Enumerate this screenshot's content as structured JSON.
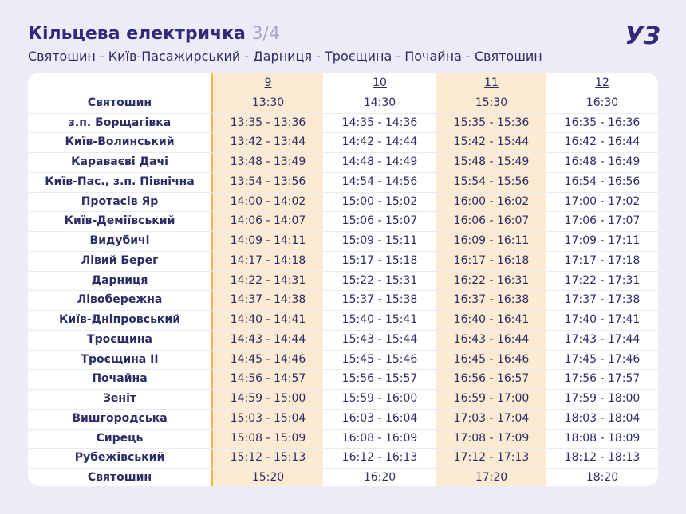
{
  "header": {
    "title": "Кільцева електричка",
    "page": "3/4",
    "route": "Святошин - Київ-Пасажирський - Дарниця - Троєщина - Почайна - Святошин",
    "logo": "УЗ"
  },
  "table": {
    "columns": [
      "9",
      "10",
      "11",
      "12"
    ],
    "rows": [
      [
        "Святошин",
        "13:30",
        "14:30",
        "15:30",
        "16:30"
      ],
      [
        "з.п. Борщагівка",
        "13:35 - 13:36",
        "14:35 - 14:36",
        "15:35 - 15:36",
        "16:35 - 16:36"
      ],
      [
        "Київ-Волинський",
        "13:42 - 13:44",
        "14:42 - 14:44",
        "15:42 - 15:44",
        "16:42 - 16:44"
      ],
      [
        "Караваєві Дачі",
        "13:48 - 13:49",
        "14:48 - 14:49",
        "15:48 - 15:49",
        "16:48 - 16:49"
      ],
      [
        "Київ-Пас., з.п. Північна",
        "13:54 - 13:56",
        "14:54 - 14:56",
        "15:54 - 15:56",
        "16:54 - 16:56"
      ],
      [
        "Протасів Яр",
        "14:00 - 14:02",
        "15:00 - 15:02",
        "16:00 - 16:02",
        "17:00 - 17:02"
      ],
      [
        "Київ-Деміївський",
        "14:06 - 14:07",
        "15:06 - 15:07",
        "16:06 - 16:07",
        "17:06 - 17:07"
      ],
      [
        "Видубичі",
        "14:09 - 14:11",
        "15:09 - 15:11",
        "16:09 - 16:11",
        "17:09 - 17:11"
      ],
      [
        "Лівий Берег",
        "14:17 - 14:18",
        "15:17 - 15:18",
        "16:17 - 16:18",
        "17:17 - 17:18"
      ],
      [
        "Дарниця",
        "14:22 - 14:31",
        "15:22 - 15:31",
        "16:22 - 16:31",
        "17:22 - 17:31"
      ],
      [
        "Лівобережна",
        "14:37 - 14:38",
        "15:37 - 15:38",
        "16:37 - 16:38",
        "17:37 - 17:38"
      ],
      [
        "Київ-Дніпровський",
        "14:40 - 14:41",
        "15:40 - 15:41",
        "16:40 - 16:41",
        "17:40 - 17:41"
      ],
      [
        "Троєщина",
        "14:43 - 14:44",
        "15:43 - 15:44",
        "16:43 - 16:44",
        "17:43 - 17:44"
      ],
      [
        "Троєщина II",
        "14:45 - 14:46",
        "15:45 - 15:46",
        "16:45 - 16:46",
        "17:45 - 17:46"
      ],
      [
        "Почайна",
        "14:56 - 14:57",
        "15:56 - 15:57",
        "16:56 - 16:57",
        "17:56 - 17:57"
      ],
      [
        "Зеніт",
        "14:59 - 15:00",
        "15:59 - 16:00",
        "16:59 - 17:00",
        "17:59 - 18:00"
      ],
      [
        "Вишгородська",
        "15:03 - 15:04",
        "16:03 - 16:04",
        "17:03 - 17:04",
        "18:03 - 18:04"
      ],
      [
        "Сирець",
        "15:08 - 15:09",
        "16:08 - 16:09",
        "17:08 - 17:09",
        "18:08 - 18:09"
      ],
      [
        "Рубежівський",
        "15:12 - 15:13",
        "16:12 - 16:13",
        "17:12 - 17:13",
        "18:12 - 18:13"
      ],
      [
        "Святошин",
        "15:20",
        "16:20",
        "17:20",
        "18:20"
      ]
    ]
  }
}
